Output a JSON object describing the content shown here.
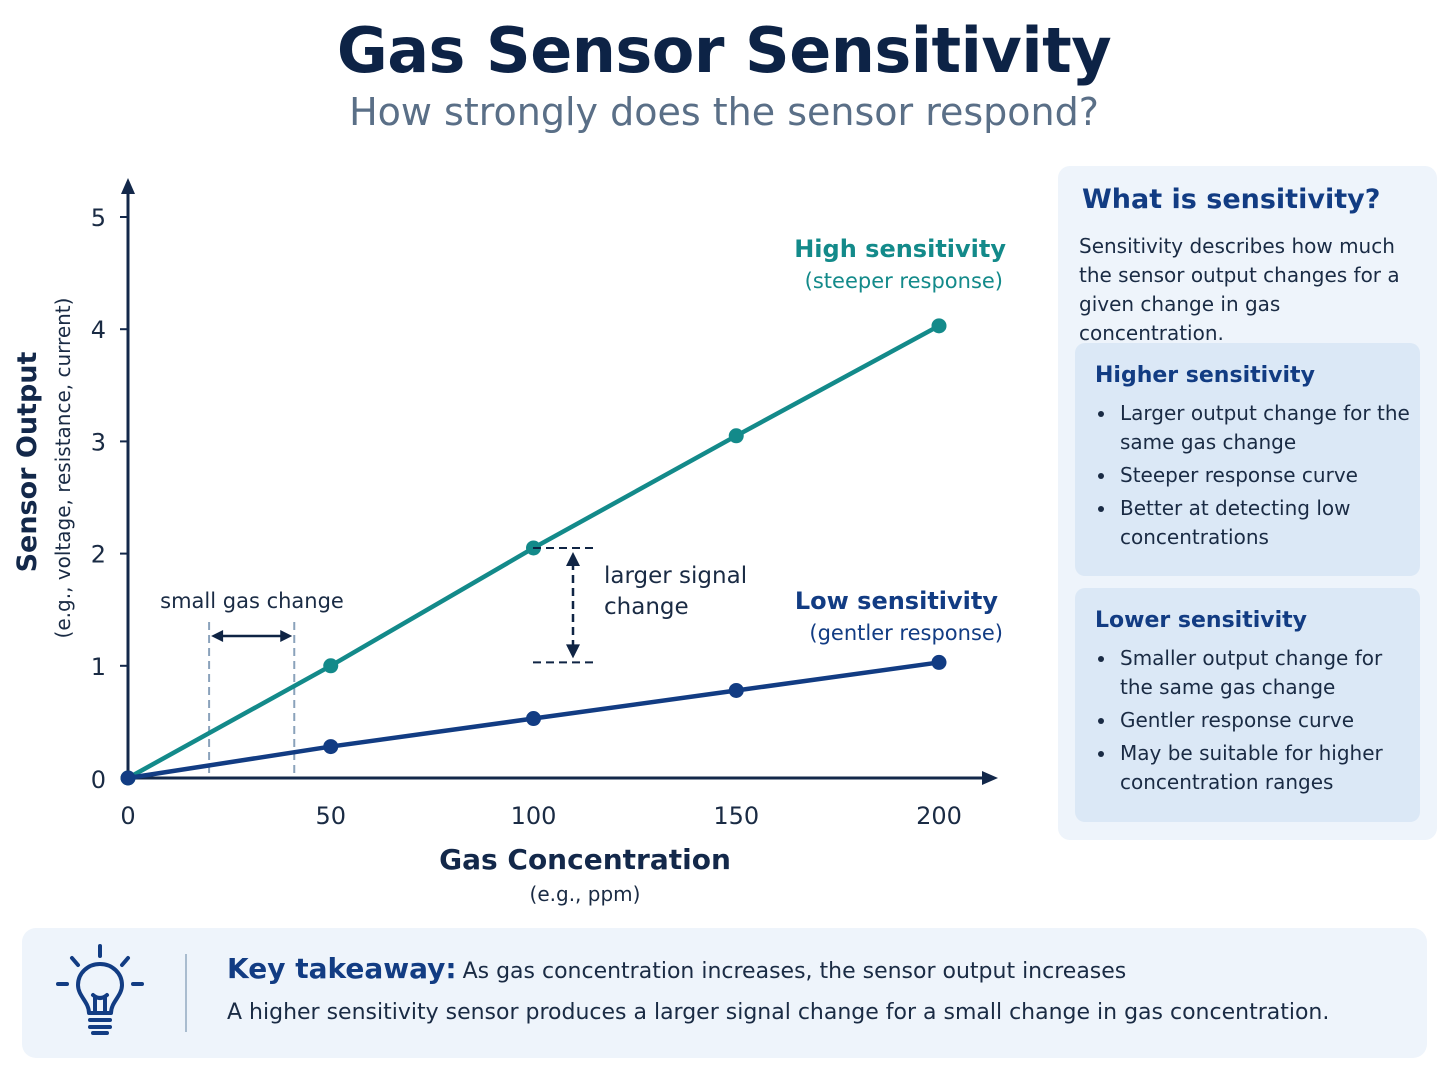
{
  "title": "Gas Sensor Sensitivity",
  "subtitle": "How strongly does the sensor respond?",
  "colors": {
    "high": "#138a8a",
    "low": "#123c83",
    "axis": "#13284a"
  },
  "chart_data": {
    "type": "line",
    "x": [
      0,
      50,
      100,
      150,
      200
    ],
    "xlim": [
      0,
      200
    ],
    "ylim": [
      0,
      5
    ],
    "x_ticks": [
      0,
      50,
      100,
      150,
      200
    ],
    "y_ticks": [
      0,
      1,
      2,
      3,
      4,
      5
    ],
    "xlabel": "Gas Concentration",
    "xlabel_sub": "(e.g., ppm)",
    "ylabel": "Sensor Output",
    "ylabel_sub": "(e.g., voltage, resistance, current)",
    "grid": false,
    "series": [
      {
        "name": "High sensitivity",
        "note": "(steeper response)",
        "color": "#138a8a",
        "values": [
          0,
          1.0,
          2.05,
          3.05,
          4.03
        ]
      },
      {
        "name": "Low sensitivity",
        "note": "(gentler response)",
        "color": "#123c83",
        "values": [
          0,
          0.28,
          0.53,
          0.78,
          1.03
        ]
      }
    ],
    "annotations": {
      "gas_change": {
        "label": "small gas change",
        "x_from": 20,
        "x_to": 41
      },
      "signal_change": {
        "label_line1": "larger signal",
        "label_line2": "change",
        "at_x": 110,
        "y_from": 1.03,
        "y_to": 2.05
      }
    }
  },
  "info": {
    "title": "What is sensitivity?",
    "text": "Sensitivity describes how much the sensor output changes for a given change in gas concentration.",
    "higher": {
      "title": "Higher sensitivity",
      "items": [
        "Larger output change for the same gas change",
        "Steeper response curve",
        "Better at detecting low concentrations"
      ]
    },
    "lower": {
      "title": "Lower sensitivity",
      "items": [
        "Smaller output change for the same gas change",
        "Gentler response curve",
        "May be suitable for higher concentration ranges"
      ]
    }
  },
  "takeaway": {
    "icon": "lightbulb-icon",
    "label": "Key takeaway:",
    "line1": "As gas concentration increases, the sensor output increases",
    "line2": "A higher sensitivity sensor produces a larger signal change for a small change in gas concentration."
  }
}
